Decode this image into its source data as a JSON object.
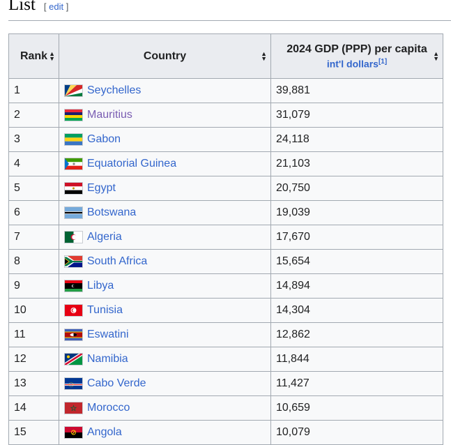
{
  "section": {
    "title": "List",
    "edit_open": "[",
    "edit_label": "edit",
    "edit_close": "]"
  },
  "table": {
    "headers": {
      "rank": "Rank",
      "country": "Country",
      "gdp": "2024 GDP (PPP) per capita",
      "gdp_unit": "int'l dollars",
      "gdp_ref": "[1]"
    },
    "sort_icon": "sort-arrows-icon",
    "rows": [
      {
        "rank": "1",
        "country": "Seychelles",
        "value": "39,881",
        "flag": "seychelles-flag-icon",
        "visited": false
      },
      {
        "rank": "2",
        "country": "Mauritius",
        "value": "31,079",
        "flag": "mauritius-flag-icon",
        "visited": true
      },
      {
        "rank": "3",
        "country": "Gabon",
        "value": "24,118",
        "flag": "gabon-flag-icon",
        "visited": false
      },
      {
        "rank": "4",
        "country": "Equatorial Guinea",
        "value": "21,103",
        "flag": "equatorial-guinea-flag-icon",
        "visited": false
      },
      {
        "rank": "5",
        "country": "Egypt",
        "value": "20,750",
        "flag": "egypt-flag-icon",
        "visited": false
      },
      {
        "rank": "6",
        "country": "Botswana",
        "value": "19,039",
        "flag": "botswana-flag-icon",
        "visited": false
      },
      {
        "rank": "7",
        "country": "Algeria",
        "value": "17,670",
        "flag": "algeria-flag-icon",
        "visited": false
      },
      {
        "rank": "8",
        "country": "South Africa",
        "value": "15,654",
        "flag": "south-africa-flag-icon",
        "visited": false
      },
      {
        "rank": "9",
        "country": "Libya",
        "value": "14,894",
        "flag": "libya-flag-icon",
        "visited": false
      },
      {
        "rank": "10",
        "country": "Tunisia",
        "value": "14,304",
        "flag": "tunisia-flag-icon",
        "visited": false
      },
      {
        "rank": "11",
        "country": "Eswatini",
        "value": "12,862",
        "flag": "eswatini-flag-icon",
        "visited": false
      },
      {
        "rank": "12",
        "country": "Namibia",
        "value": "11,844",
        "flag": "namibia-flag-icon",
        "visited": false
      },
      {
        "rank": "13",
        "country": "Cabo Verde",
        "value": "11,427",
        "flag": "cabo-verde-flag-icon",
        "visited": false
      },
      {
        "rank": "14",
        "country": "Morocco",
        "value": "10,659",
        "flag": "morocco-flag-icon",
        "visited": false
      },
      {
        "rank": "15",
        "country": "Angola",
        "value": "10,079",
        "flag": "angola-flag-icon",
        "visited": false
      }
    ]
  },
  "colors": {
    "link": "#3366cc",
    "visited_link": "#795cb2",
    "header_bg": "#eaecf0",
    "cell_bg": "#f8f9fa",
    "border": "#a2a9b1"
  }
}
